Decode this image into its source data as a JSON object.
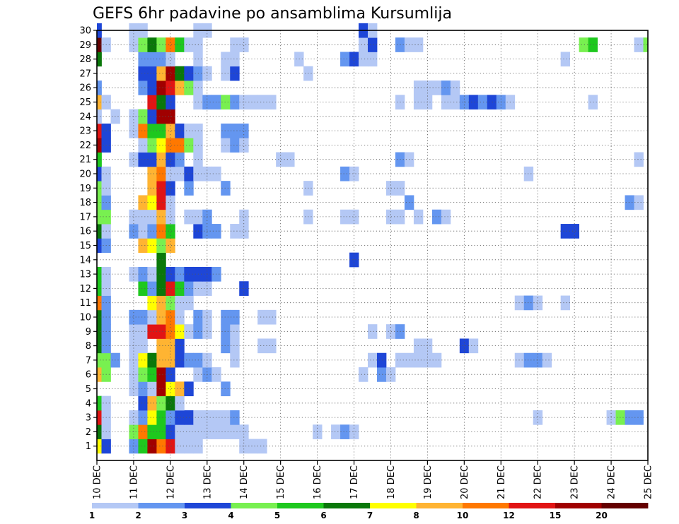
{
  "chart_data": {
    "type": "heatmap",
    "title": "GEFS 6hr padavine po ansamblima Kursumlija",
    "x_tick_labels": [
      "10 DEC",
      "11 DEC",
      "12 DEC",
      "13 DEC",
      "14 DEC",
      "15 DEC",
      "16 DEC",
      "17 DEC",
      "18 DEC",
      "19 DEC",
      "20 DEC",
      "21 DEC",
      "22 DEC",
      "23 DEC",
      "24 DEC",
      "25 DEC"
    ],
    "y_tick_labels": [
      1,
      2,
      3,
      4,
      5,
      6,
      7,
      8,
      9,
      10,
      11,
      12,
      13,
      14,
      15,
      16,
      17,
      18,
      19,
      20,
      21,
      22,
      23,
      24,
      25,
      26,
      27,
      28,
      29,
      30
    ],
    "ylim": [
      0,
      30
    ],
    "time_steps_per_day": 4,
    "grid": true,
    "legend": {
      "placement": "bottom",
      "colors": [
        "#b4c8f5",
        "#6496f0",
        "#1e46d7",
        "#78f050",
        "#1ec81e",
        "#0a780a",
        "#ffff00",
        "#ffb432",
        "#ff7800",
        "#e11414",
        "#a00000",
        "#640000"
      ],
      "labels": [
        "1",
        "2",
        "3",
        "4",
        "5",
        "6",
        "7",
        "8",
        "10",
        "12",
        "15",
        "20"
      ]
    },
    "values": {
      "1": {
        "0": 7,
        "1": 3,
        "4": 2,
        "5": 5,
        "6": 11,
        "7": 9,
        "8": 10,
        "9": 1,
        "10": 1,
        "11": 1,
        "16": 1,
        "17": 1,
        "18": 1
      },
      "2": {
        "0": 6,
        "1": 1,
        "4": 4,
        "5": 9,
        "6": 5,
        "7": 5,
        "8": 3,
        "9": 1,
        "10": 1,
        "11": 1,
        "12": 1,
        "13": 1,
        "14": 1,
        "15": 1,
        "16": 1,
        "24": 1,
        "26": 1,
        "27": 2,
        "28": 1
      },
      "3": {
        "0": 10,
        "1": 1,
        "4": 1,
        "5": 2,
        "6": 7,
        "7": 5,
        "8": 2,
        "9": 3,
        "10": 3,
        "11": 1,
        "12": 1,
        "13": 1,
        "14": 1,
        "15": 2,
        "48": 1,
        "56": 1,
        "57": 4,
        "58": 2,
        "59": 2
      },
      "4": {
        "0": 5,
        "1": 1,
        "5": 3,
        "6": 8,
        "7": 4,
        "8": 6,
        "9": 1
      },
      "5": {
        "4": 1,
        "5": 2,
        "6": 1,
        "7": 11,
        "8": 7,
        "9": 8,
        "10": 3,
        "14": 2
      },
      "6": {
        "0": 8,
        "1": 4,
        "4": 1,
        "5": 4,
        "6": 5,
        "7": 11,
        "8": 3,
        "11": 1,
        "12": 2,
        "13": 1,
        "29": 1,
        "31": 2,
        "32": 1
      },
      "7": {
        "0": 4,
        "1": 4,
        "2": 2,
        "4": 1,
        "5": 7,
        "6": 6,
        "7": 8,
        "8": 8,
        "9": 3,
        "10": 2,
        "11": 2,
        "12": 1,
        "15": 1,
        "30": 1,
        "31": 3,
        "33": 1,
        "34": 1,
        "35": 1,
        "36": 1,
        "37": 1,
        "46": 1,
        "47": 2,
        "48": 2,
        "49": 1
      },
      "8": {
        "0": 6,
        "1": 2,
        "4": 1,
        "5": 1,
        "7": 8,
        "8": 8,
        "9": 3,
        "14": 2,
        "15": 1,
        "18": 1,
        "19": 1,
        "35": 1,
        "36": 1,
        "40": 3,
        "41": 1
      },
      "9": {
        "0": 6,
        "1": 2,
        "4": 1,
        "5": 1,
        "6": 10,
        "7": 10,
        "8": 9,
        "9": 7,
        "10": 1,
        "11": 2,
        "12": 1,
        "14": 2,
        "15": 1,
        "30": 1,
        "32": 1,
        "33": 2
      },
      "10": {
        "0": 6,
        "1": 2,
        "4": 2,
        "5": 2,
        "6": 1,
        "7": 8,
        "8": 9,
        "9": 1,
        "11": 2,
        "12": 1,
        "14": 2,
        "15": 2,
        "18": 1,
        "19": 1
      },
      "11": {
        "0": 9,
        "1": 2,
        "6": 7,
        "7": 8,
        "8": 4,
        "9": 1,
        "10": 1,
        "46": 1,
        "47": 2,
        "48": 1,
        "51": 1
      },
      "12": {
        "0": 5,
        "1": 1,
        "5": 5,
        "6": 2,
        "7": 6,
        "8": 10,
        "9": 5,
        "10": 2,
        "11": 1,
        "12": 1,
        "16": 3
      },
      "13": {
        "0": 5,
        "1": 1,
        "4": 1,
        "5": 2,
        "6": 1,
        "7": 6,
        "8": 3,
        "9": 2,
        "10": 3,
        "11": 3,
        "12": 3,
        "13": 2
      },
      "14": {
        "7": 6,
        "28": 3
      },
      "15": {
        "0": 3,
        "1": 2,
        "5": 8,
        "6": 7,
        "7": 4,
        "8": 8
      },
      "16": {
        "0": 6,
        "1": 1,
        "4": 2,
        "5": 1,
        "6": 2,
        "7": 9,
        "8": 5,
        "11": 3,
        "12": 2,
        "13": 2,
        "15": 1,
        "16": 1,
        "51": 3,
        "52": 3
      },
      "17": {
        "0": 4,
        "1": 4,
        "4": 1,
        "5": 1,
        "6": 1,
        "7": 8,
        "8": 1,
        "10": 1,
        "11": 1,
        "12": 2,
        "16": 1,
        "23": 1,
        "27": 1,
        "28": 1,
        "32": 1,
        "33": 1,
        "35": 1,
        "37": 2,
        "38": 1
      },
      "18": {
        "0": 4,
        "1": 2,
        "5": 8,
        "6": 7,
        "7": 10,
        "8": 1,
        "34": 2,
        "58": 2,
        "59": 1
      },
      "19": {
        "0": 4,
        "1": 1,
        "6": 8,
        "7": 10,
        "8": 3,
        "10": 2,
        "14": 2,
        "23": 1,
        "32": 1,
        "33": 1
      },
      "20": {
        "0": 3,
        "1": 1,
        "6": 8,
        "7": 9,
        "8": 1,
        "9": 1,
        "10": 3,
        "11": 1,
        "12": 1,
        "13": 1,
        "27": 2,
        "28": 1,
        "47": 1
      },
      "21": {
        "0": 5,
        "4": 1,
        "5": 3,
        "6": 3,
        "7": 8,
        "8": 3,
        "9": 2,
        "11": 1,
        "20": 1,
        "21": 1,
        "33": 2,
        "34": 1,
        "59": 1
      },
      "22": {
        "0": 11,
        "1": 3,
        "5": 1,
        "6": 4,
        "7": 7,
        "8": 9,
        "9": 9,
        "10": 4,
        "11": 1,
        "14": 1,
        "15": 2,
        "16": 1
      },
      "23": {
        "0": 10,
        "1": 3,
        "4": 1,
        "5": 9,
        "6": 5,
        "7": 5,
        "8": 8,
        "9": 3,
        "10": 1,
        "11": 1,
        "14": 2,
        "15": 2,
        "16": 2
      },
      "24": {
        "0": 1,
        "2": 1,
        "4": 1,
        "5": 4,
        "6": 3,
        "7": 11,
        "8": 11
      },
      "25": {
        "0": 8,
        "1": 1,
        "6": 10,
        "7": 6,
        "8": 3,
        "11": 1,
        "12": 2,
        "13": 2,
        "14": 4,
        "15": 2,
        "16": 1,
        "17": 1,
        "18": 1,
        "19": 1,
        "33": 1,
        "35": 1,
        "36": 1,
        "38": 1,
        "39": 1,
        "40": 2,
        "41": 3,
        "42": 2,
        "43": 3,
        "44": 2,
        "45": 1,
        "54": 1
      },
      "26": {
        "0": 2,
        "5": 2,
        "6": 3,
        "7": 11,
        "8": 10,
        "9": 8,
        "10": 4,
        "11": 1,
        "35": 1,
        "36": 1,
        "37": 1,
        "38": 2,
        "39": 1
      },
      "27": {
        "5": 3,
        "6": 3,
        "7": 8,
        "8": 11,
        "9": 6,
        "10": 3,
        "11": 2,
        "12": 1,
        "14": 1,
        "15": 3,
        "23": 1
      },
      "28": {
        "0": 6,
        "5": 2,
        "6": 2,
        "7": 2,
        "8": 1,
        "11": 1,
        "14": 1,
        "15": 1,
        "22": 1,
        "27": 2,
        "28": 3,
        "29": 1,
        "30": 1,
        "51": 1
      },
      "29": {
        "0": 12,
        "1": 1,
        "4": 1,
        "5": 4,
        "6": 6,
        "7": 4,
        "8": 9,
        "9": 5,
        "10": 1,
        "11": 1,
        "15": 1,
        "16": 1,
        "29": 1,
        "30": 3,
        "33": 2,
        "34": 1,
        "35": 1,
        "53": 4,
        "54": 5,
        "59": 1,
        "60": 4
      },
      "30": {
        "0": 3,
        "4": 1,
        "5": 1,
        "11": 1,
        "12": 1,
        "29": 3,
        "30": 1
      }
    }
  }
}
